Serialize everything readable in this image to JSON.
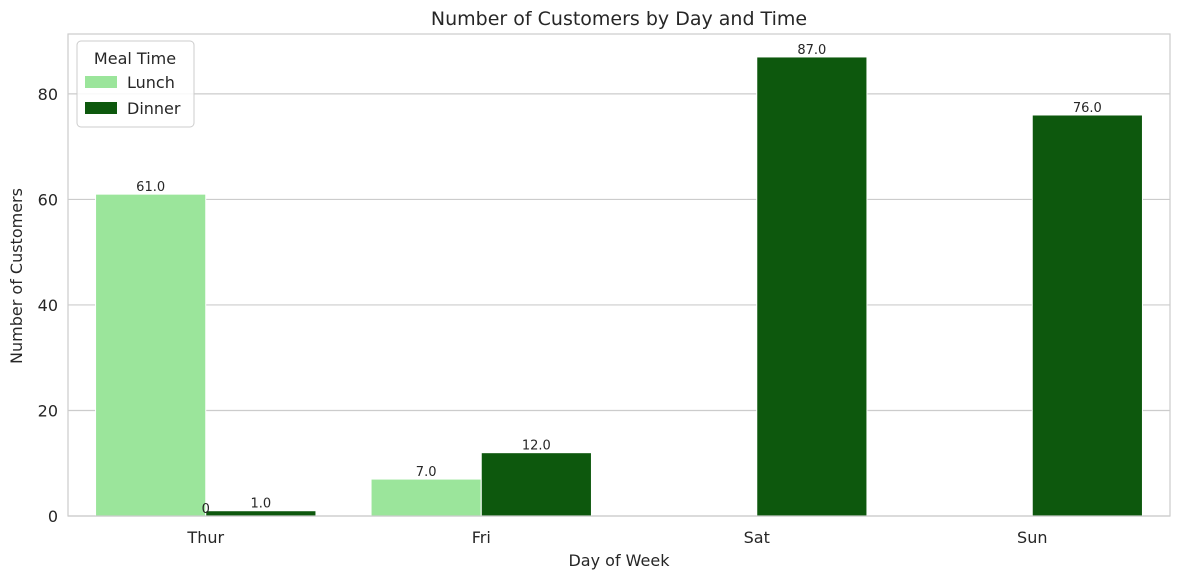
{
  "chart_data": {
    "type": "bar",
    "title": "Number of Customers by Day and Time",
    "xlabel": "Day of Week",
    "ylabel": "Number of Customers",
    "categories": [
      "Thur",
      "Fri",
      "Sat",
      "Sun"
    ],
    "series": [
      {
        "name": "Lunch",
        "values": [
          61,
          7,
          0,
          0
        ],
        "labels": [
          "61.0",
          "7.0",
          "",
          ""
        ],
        "color": "#9be59b"
      },
      {
        "name": "Dinner",
        "values": [
          1,
          12,
          87,
          76
        ],
        "labels": [
          "1.0",
          "12.0",
          "87.0",
          "76.0"
        ],
        "color": "#0d580d"
      }
    ],
    "extra_labels": [
      {
        "category": "Thur",
        "text": "0"
      }
    ],
    "ylim": [
      0,
      91.35
    ],
    "yticks": [
      0,
      20,
      40,
      60,
      80
    ],
    "ytick_labels": [
      "0",
      "20",
      "40",
      "60",
      "80"
    ],
    "grid": "horizontal",
    "legend": {
      "title": "Meal Time",
      "placement": "top-left"
    }
  }
}
